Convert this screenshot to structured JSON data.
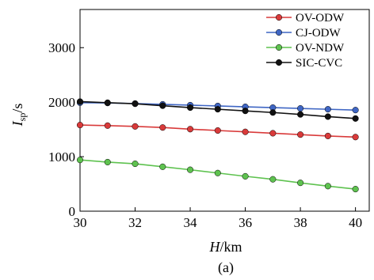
{
  "chart_data": {
    "type": "line",
    "x": [
      30,
      31,
      32,
      33,
      34,
      35,
      36,
      37,
      38,
      39,
      40
    ],
    "series": [
      {
        "name": "OV-ODW",
        "color": "#d93a3a",
        "values": [
          1580,
          1570,
          1555,
          1535,
          1505,
          1480,
          1455,
          1430,
          1405,
          1380,
          1360
        ]
      },
      {
        "name": "CJ-ODW",
        "color": "#3f66c4",
        "values": [
          1990,
          1985,
          1975,
          1960,
          1945,
          1930,
          1915,
          1900,
          1885,
          1870,
          1855
        ]
      },
      {
        "name": "OV-NDW",
        "color": "#5ec24f",
        "values": [
          940,
          900,
          870,
          815,
          760,
          700,
          640,
          585,
          520,
          460,
          405
        ]
      },
      {
        "name": "SIC-CVC",
        "color": "#111111",
        "values": [
          2010,
          1990,
          1970,
          1935,
          1900,
          1870,
          1840,
          1810,
          1775,
          1735,
          1700
        ]
      }
    ],
    "xlabel_main": "H",
    "xlabel_unit": "/km",
    "ylabel_main": "I",
    "ylabel_sub": "sp",
    "ylabel_unit": "/s",
    "xlim": [
      30,
      40.5
    ],
    "ylim": [
      0,
      3700
    ],
    "xticks": [
      30,
      32,
      34,
      36,
      38,
      40
    ],
    "yticks": [
      0,
      1000,
      2000,
      3000
    ],
    "grid": false,
    "legend": "top-right",
    "caption": "(a)"
  }
}
